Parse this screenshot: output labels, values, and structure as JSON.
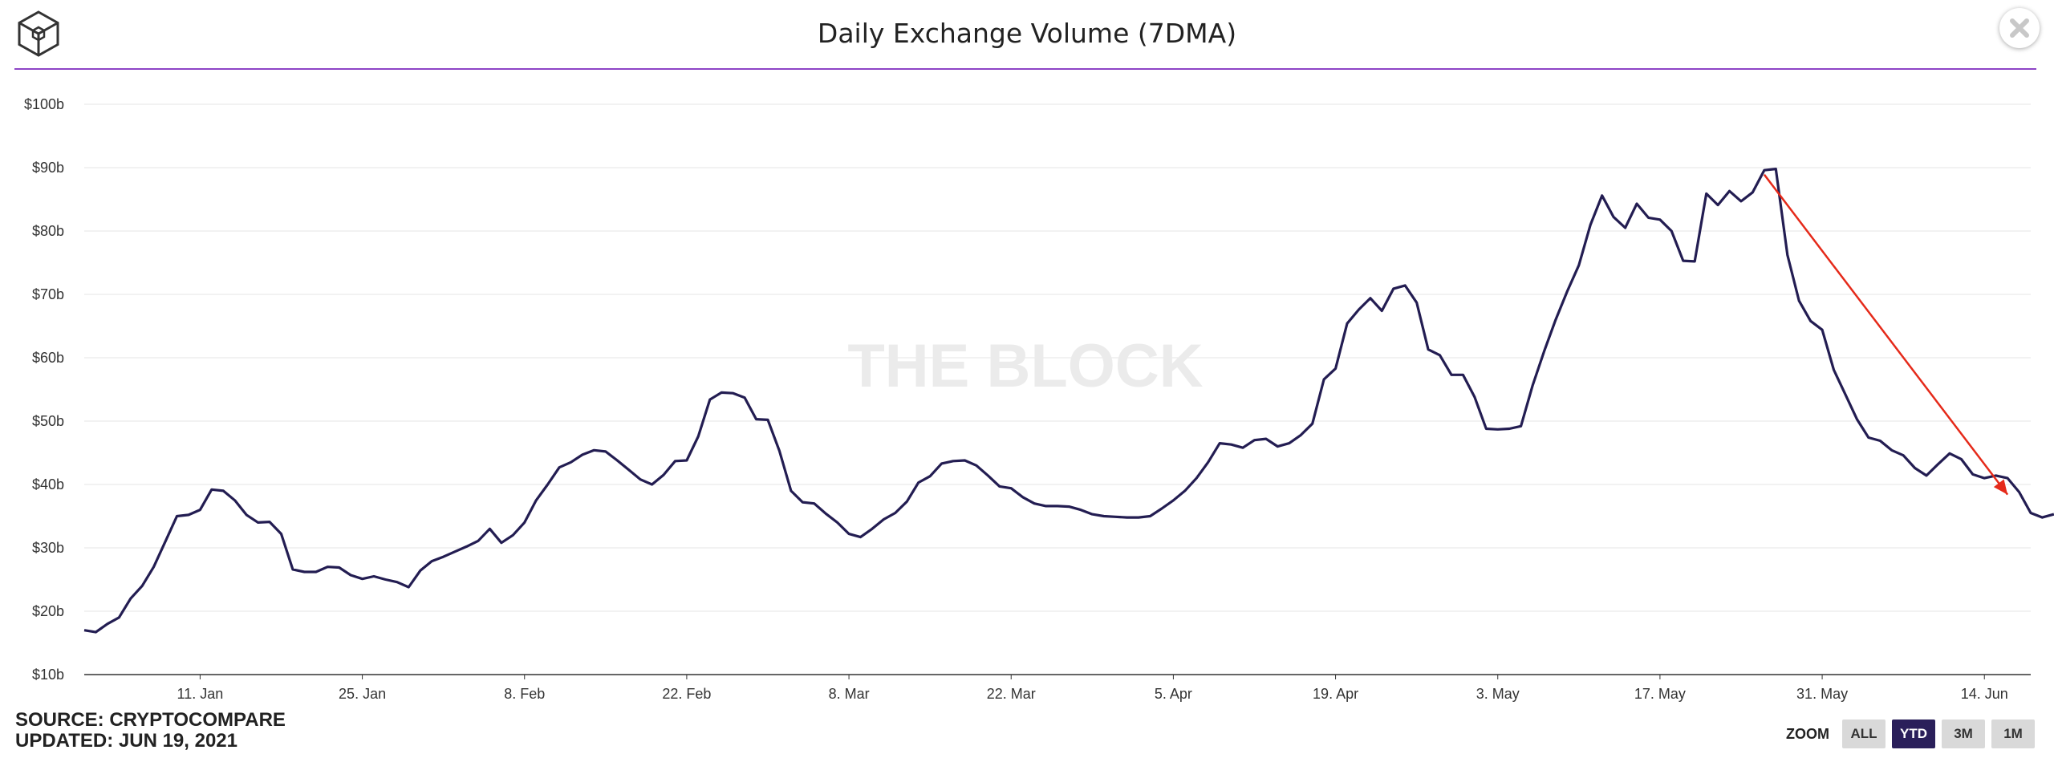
{
  "header": {
    "title": "Daily Exchange Volume (7DMA)",
    "logo_icon": "the-block-cube-logo-icon",
    "close_icon": "close-icon",
    "accent_line_color": "#8e44c6"
  },
  "watermark": "THE BLOCK",
  "footer": {
    "source": "SOURCE: CRYPTOCOMPARE",
    "updated": "UPDATED: JUN 19, 2021"
  },
  "zoom": {
    "label": "ZOOM",
    "buttons": [
      "ALL",
      "YTD",
      "3M",
      "1M"
    ],
    "active": "YTD",
    "active_color": "#2a1f5a"
  },
  "chart_data": {
    "type": "line",
    "title": "Daily Exchange Volume (7DMA)",
    "xlabel": "",
    "ylabel": "",
    "ylim": [
      10,
      100
    ],
    "yticks": [
      10,
      20,
      30,
      40,
      50,
      60,
      70,
      80,
      90,
      100
    ],
    "ytick_labels": [
      "$10b",
      "$20b",
      "$30b",
      "$40b",
      "$50b",
      "$60b",
      "$70b",
      "$80b",
      "$90b",
      "$100b"
    ],
    "xlim": [
      "2021-01-01",
      "2021-06-18"
    ],
    "xticks": [
      {
        "date": "2021-01-11",
        "label": "11. Jan"
      },
      {
        "date": "2021-01-25",
        "label": "25. Jan"
      },
      {
        "date": "2021-02-08",
        "label": "8. Feb"
      },
      {
        "date": "2021-02-22",
        "label": "22. Feb"
      },
      {
        "date": "2021-03-08",
        "label": "8. Mar"
      },
      {
        "date": "2021-03-22",
        "label": "22. Mar"
      },
      {
        "date": "2021-04-05",
        "label": "5. Apr"
      },
      {
        "date": "2021-04-19",
        "label": "19. Apr"
      },
      {
        "date": "2021-05-03",
        "label": "3. May"
      },
      {
        "date": "2021-05-17",
        "label": "17. May"
      },
      {
        "date": "2021-05-31",
        "label": "31. May"
      },
      {
        "date": "2021-06-14",
        "label": "14. Jun"
      }
    ],
    "grid": true,
    "line_color": "#231d52",
    "series": [
      {
        "x_start": "2021-01-01",
        "x_step_days": 1,
        "values": [
          17.0,
          16.7,
          18.0,
          19.0,
          22.0,
          24.0,
          27.0,
          31.0,
          35.0,
          35.2,
          36.0,
          39.2,
          39.0,
          37.5,
          35.2,
          34.0,
          34.1,
          32.2,
          26.6,
          26.2,
          26.2,
          27.0,
          26.9,
          25.7,
          25.1,
          25.5,
          25.0,
          24.6,
          23.8,
          26.4,
          27.9,
          28.6,
          29.4,
          30.2,
          31.1,
          33.0,
          30.8,
          32.0,
          34.0,
          37.5,
          40.0,
          42.7,
          43.5,
          44.7,
          45.4,
          45.2,
          43.8,
          42.3,
          40.8,
          40.0,
          41.5,
          43.7,
          43.8,
          47.6,
          53.4,
          54.5,
          54.4,
          53.7,
          50.3,
          50.2,
          45.3,
          39.0,
          37.2,
          37.0,
          35.4,
          34.0,
          32.2,
          31.7,
          33.0,
          34.5,
          35.5,
          37.3,
          40.3,
          41.3,
          43.3,
          43.7,
          43.8,
          43.0,
          41.4,
          39.7,
          39.4,
          38.0,
          37.0,
          36.6,
          36.6,
          36.5,
          36.0,
          35.3,
          35.0,
          34.9,
          34.8,
          34.8,
          35.0,
          36.2,
          37.5,
          39.0,
          41.0,
          43.5,
          46.5,
          46.3,
          45.8,
          47.0,
          47.2,
          46.0,
          46.5,
          47.8,
          49.6,
          56.6,
          58.3,
          65.4,
          67.6,
          69.4,
          67.4,
          70.9,
          71.4,
          68.7,
          61.3,
          60.4,
          57.3,
          57.3,
          53.8,
          48.8,
          48.7,
          48.8,
          49.2,
          55.6,
          61.0,
          66.0,
          70.5,
          74.6,
          81.0,
          85.6,
          82.2,
          80.5,
          84.3,
          82.1,
          81.8,
          80.0,
          75.3,
          75.2,
          85.9,
          84.1,
          86.3,
          84.7,
          86.1,
          89.6,
          89.8,
          76.2,
          69.0,
          65.8,
          64.4,
          58.1,
          54.2,
          50.3,
          47.4,
          46.9,
          45.4,
          44.6,
          42.6,
          41.4,
          43.2,
          44.9,
          44.0,
          41.6,
          41.0,
          41.4,
          41.0,
          38.8,
          35.5,
          34.8,
          35.3
        ]
      }
    ],
    "annotations": [
      {
        "type": "arrow",
        "color": "#e52a1a",
        "from": [
          "2021-05-26",
          88.9
        ],
        "to": [
          "2021-06-16",
          38.4
        ]
      }
    ]
  }
}
